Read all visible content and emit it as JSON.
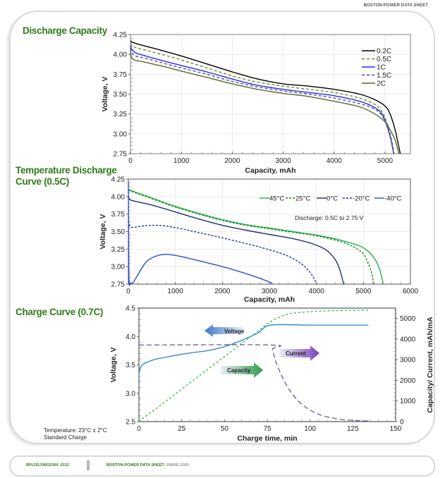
{
  "header": {
    "brand": "BOSTON-POWER DATA SHEET"
  },
  "sections": {
    "discharge_title": "Discharge Capacity",
    "temp_title_line1": "Temperature Discharge",
    "temp_title_line2": "Curve (0.5C)",
    "charge_title": "Charge Curve (0.7C)",
    "charge_note_line1": "Temperature:  23°C ±  2°C",
    "charge_note_line2": "Standard Charge"
  },
  "footer": {
    "doc_id": "BPLDS.SWG5300_0312",
    "title": "BOSTON-POWER DATA SHEET:",
    "product": " SWING 5300"
  },
  "chart_data": [
    {
      "type": "line",
      "title": "Discharge Capacity",
      "xlabel": "Capacity, mAh",
      "ylabel": "Voltage, V",
      "xlim": [
        0,
        5500
      ],
      "ylim": [
        2.75,
        4.25
      ],
      "xticks": [
        "0",
        "1000",
        "2000",
        "3000",
        "4000",
        "5000"
      ],
      "yticks": [
        "2.75",
        "3.00",
        "3.25",
        "3.50",
        "3.75",
        "4.00",
        "4.25"
      ],
      "grid": true,
      "legend": "top-right",
      "series": [
        {
          "name": "0.2C",
          "color": "#000000",
          "dash": "",
          "x": [
            0,
            50,
            200,
            500,
            1000,
            1500,
            2000,
            2500,
            3000,
            3500,
            4000,
            4500,
            4800,
            5000,
            5100,
            5200,
            5250,
            5300
          ],
          "y": [
            4.17,
            4.15,
            4.12,
            4.07,
            3.98,
            3.88,
            3.78,
            3.69,
            3.63,
            3.6,
            3.56,
            3.5,
            3.43,
            3.35,
            3.25,
            3.05,
            2.9,
            2.75
          ]
        },
        {
          "name": "0.5C",
          "color": "#6b8e23",
          "dash": "4,3",
          "x": [
            0,
            50,
            200,
            500,
            1000,
            1500,
            2000,
            2500,
            3000,
            3500,
            4000,
            4500,
            4800,
            4950,
            5050,
            5120,
            5180
          ],
          "y": [
            4.14,
            4.1,
            4.07,
            4.02,
            3.93,
            3.83,
            3.73,
            3.65,
            3.6,
            3.56,
            3.52,
            3.45,
            3.37,
            3.27,
            3.12,
            2.95,
            2.75
          ]
        },
        {
          "name": "1C",
          "color": "#2a2aee",
          "dash": "",
          "x": [
            0,
            30,
            100,
            300,
            700,
            1000,
            1500,
            2000,
            2500,
            3000,
            3500,
            4000,
            4500,
            4800,
            4950,
            5050,
            5120,
            5170
          ],
          "y": [
            4.11,
            4.06,
            4.02,
            3.98,
            3.91,
            3.86,
            3.78,
            3.69,
            3.61,
            3.56,
            3.52,
            3.48,
            3.41,
            3.33,
            3.24,
            3.08,
            2.92,
            2.75
          ]
        },
        {
          "name": "1.5C",
          "color": "#5a4a99",
          "dash": "4,3",
          "x": [
            0,
            30,
            100,
            300,
            700,
            1000,
            1500,
            2000,
            2500,
            3000,
            3500,
            4000,
            4500,
            4800,
            4950,
            5050,
            5120,
            5170
          ],
          "y": [
            4.08,
            4.02,
            3.98,
            3.95,
            3.88,
            3.83,
            3.75,
            3.66,
            3.59,
            3.54,
            3.5,
            3.45,
            3.38,
            3.31,
            3.22,
            3.07,
            2.91,
            2.75
          ]
        },
        {
          "name": "2C",
          "color": "#556b2f",
          "dash": "",
          "x": [
            0,
            20,
            80,
            300,
            700,
            1000,
            1500,
            2000,
            2500,
            3000,
            3500,
            4000,
            4500,
            4800,
            5000,
            5100,
            5200,
            5270
          ],
          "y": [
            4.05,
            3.97,
            3.93,
            3.9,
            3.84,
            3.79,
            3.71,
            3.63,
            3.56,
            3.51,
            3.47,
            3.41,
            3.34,
            3.25,
            3.15,
            3.05,
            2.92,
            2.75
          ]
        }
      ]
    },
    {
      "type": "line",
      "title": "Temperature Discharge Curve (0.5C)",
      "xlabel": "Capacity, mAh",
      "ylabel": "Voltage, V",
      "xlim": [
        0,
        6000
      ],
      "ylim": [
        2.75,
        4.25
      ],
      "xticks": [
        "0",
        "1000",
        "2000",
        "3000",
        "4000",
        "5000",
        "6000"
      ],
      "yticks": [
        "2.75",
        "3.00",
        "3.25",
        "3.50",
        "3.75",
        "4.00",
        "4.25"
      ],
      "grid": true,
      "legend": "top-right",
      "annotation": "Discharge: 0.5C to 2.75 V",
      "series": [
        {
          "name": "45°C",
          "color": "#22b14c",
          "dash": "",
          "x": [
            0,
            500,
            1000,
            1500,
            2000,
            2500,
            3000,
            3500,
            4000,
            4500,
            4900,
            5100,
            5250,
            5350,
            5420
          ],
          "y": [
            4.1,
            3.98,
            3.86,
            3.76,
            3.67,
            3.6,
            3.55,
            3.5,
            3.45,
            3.38,
            3.3,
            3.22,
            3.1,
            2.95,
            2.75
          ]
        },
        {
          "name": "25°C",
          "color": "#1e8a1e",
          "dash": "3,2",
          "x": [
            0,
            500,
            1000,
            1500,
            2000,
            2500,
            3000,
            3500,
            4000,
            4500,
            4800,
            5000,
            5100,
            5170,
            5220
          ],
          "y": [
            4.09,
            3.97,
            3.85,
            3.75,
            3.66,
            3.59,
            3.54,
            3.49,
            3.44,
            3.36,
            3.28,
            3.18,
            3.05,
            2.92,
            2.75
          ]
        },
        {
          "name": "0°C",
          "color": "#1f3070",
          "dash": "",
          "x": [
            0,
            20,
            100,
            500,
            1000,
            1500,
            2000,
            2500,
            3000,
            3500,
            3900,
            4200,
            4400,
            4500,
            4580
          ],
          "y": [
            4.02,
            3.97,
            3.94,
            3.88,
            3.78,
            3.68,
            3.59,
            3.52,
            3.46,
            3.4,
            3.33,
            3.24,
            3.1,
            2.95,
            2.75
          ]
        },
        {
          "name": "-20°C",
          "color": "#1f3a93",
          "dash": "3,2",
          "x": [
            0,
            20,
            80,
            300,
            500,
            800,
            1200,
            1600,
            2000,
            2500,
            3000,
            3400,
            3700,
            3850,
            3950,
            4000
          ],
          "y": [
            3.7,
            3.6,
            3.56,
            3.58,
            3.59,
            3.58,
            3.53,
            3.47,
            3.41,
            3.33,
            3.24,
            3.15,
            3.03,
            2.93,
            2.83,
            2.75
          ]
        },
        {
          "name": "-40°C",
          "color": "#2a4fd8",
          "dash": "",
          "x": [
            0,
            5,
            15,
            50,
            100,
            200,
            400,
            700,
            1000,
            1400,
            2000,
            2500,
            3000,
            3050
          ],
          "y": [
            4.2,
            3.6,
            2.8,
            2.77,
            2.77,
            2.88,
            3.08,
            3.17,
            3.16,
            3.1,
            3.0,
            2.9,
            2.78,
            2.75
          ]
        }
      ]
    },
    {
      "type": "line",
      "title": "Charge Curve (0.7C)",
      "xlabel": "Charge time, min",
      "ylabel": "Voltage, V",
      "y2label": "Capacity/ Current, mAh/mA",
      "xlim": [
        0,
        150
      ],
      "ylim": [
        2.5,
        4.5
      ],
      "y2lim": [
        0,
        5500
      ],
      "xticks": [
        "0",
        "25",
        "50",
        "75",
        "100",
        "125",
        "150"
      ],
      "yticks": [
        "2.5",
        "3.0",
        "3.5",
        "4.0",
        "4.5"
      ],
      "y2ticks": [
        "0",
        "1000",
        "2000",
        "3000",
        "4000",
        "5000"
      ],
      "annotations": [
        {
          "label": "Voltage",
          "arrow": "left",
          "color": "#3f78c8"
        },
        {
          "label": "Current",
          "arrow": "right",
          "color": "#7a3fb8"
        },
        {
          "label": "Capacity",
          "arrow": "right",
          "color": "#2e9a4a"
        }
      ],
      "series": [
        {
          "name": "Voltage",
          "axis": "left",
          "color": "#2a7fc9",
          "dash": "",
          "x": [
            0,
            0.5,
            2,
            5,
            10,
            20,
            30,
            40,
            50,
            60,
            70,
            77,
            100,
            134
          ],
          "y": [
            3.32,
            3.42,
            3.5,
            3.55,
            3.6,
            3.66,
            3.71,
            3.75,
            3.82,
            3.93,
            4.07,
            4.2,
            4.2,
            4.2
          ]
        },
        {
          "name": "Capacity",
          "axis": "right",
          "color": "#2ebd4a",
          "dash": "3,3",
          "x": [
            0,
            10,
            20,
            30,
            40,
            50,
            60,
            70,
            77,
            85,
            90,
            100,
            110,
            125,
            134
          ],
          "y": [
            0,
            630,
            1260,
            1890,
            2520,
            3150,
            3780,
            4410,
            4850,
            5150,
            5250,
            5330,
            5370,
            5390,
            5400
          ]
        },
        {
          "name": "Current",
          "axis": "right",
          "color": "#6a5a9a",
          "dash": "7,4",
          "x": [
            0,
            77,
            78,
            80,
            83,
            86,
            90,
            95,
            100,
            105,
            110,
            115,
            120,
            125,
            130,
            134
          ],
          "y": [
            3710,
            3710,
            3500,
            2900,
            2300,
            1800,
            1300,
            850,
            560,
            360,
            230,
            150,
            90,
            60,
            40,
            30
          ]
        }
      ]
    }
  ]
}
